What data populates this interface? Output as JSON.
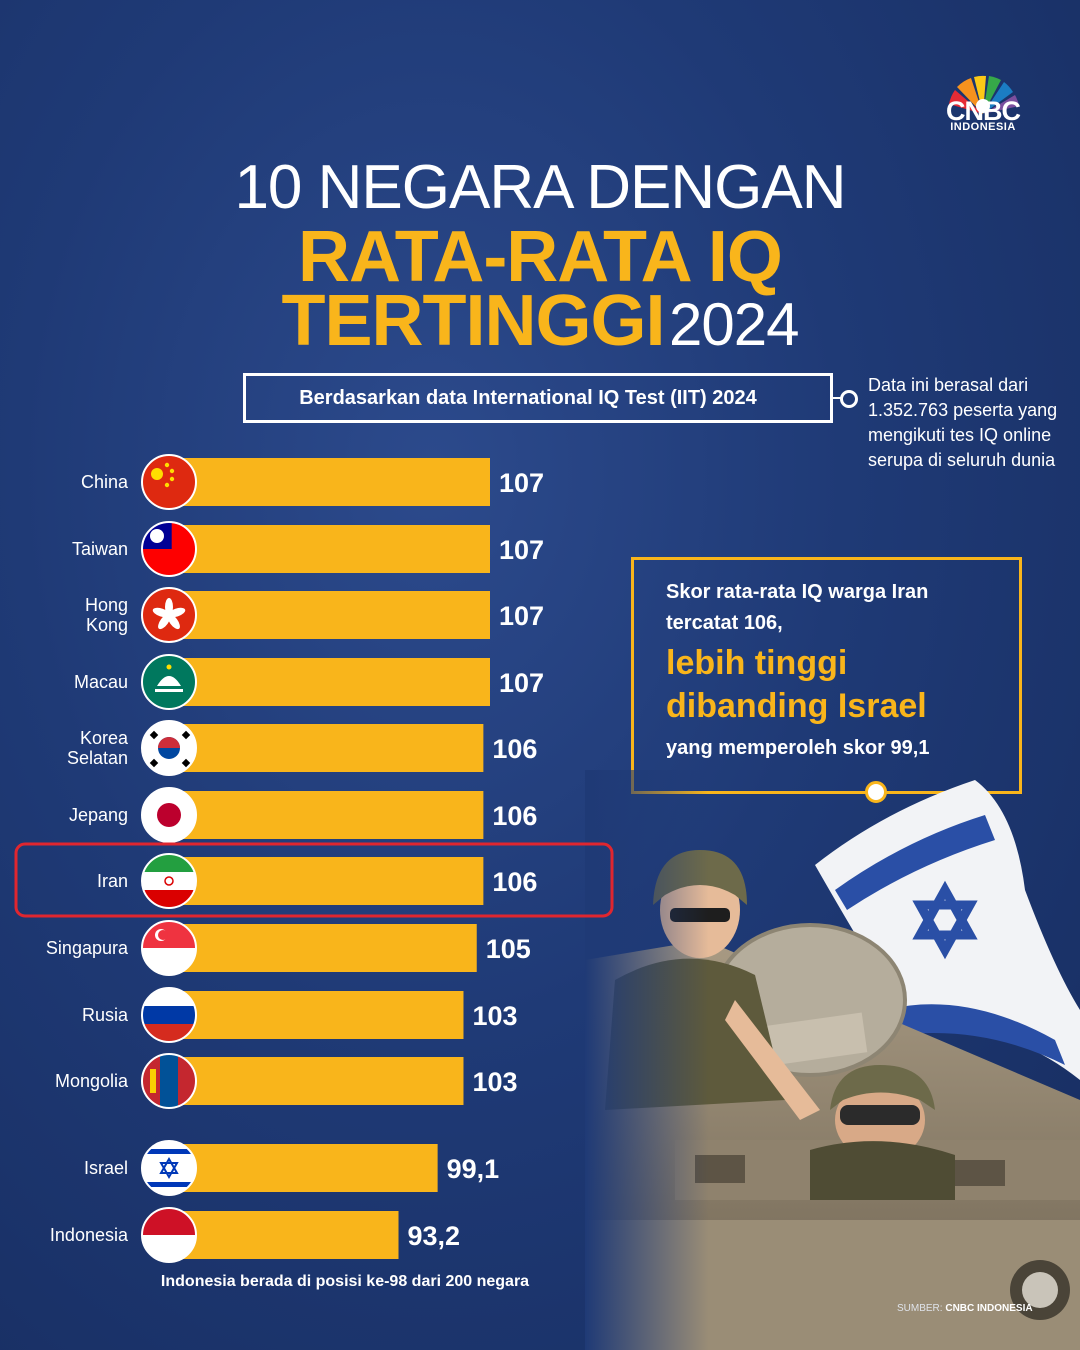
{
  "logo": {
    "name": "CNBC",
    "sub": "INDONESIA"
  },
  "title": {
    "line1": "10 NEGARA DENGAN",
    "line2": "RATA-RATA IQ",
    "line3_highlight": "TERTINGGI",
    "line3_year": "2024"
  },
  "source_box": "Berdasarkan data International IQ Test (IIT) 2024",
  "note": "Data ini berasal dari 1.352.763 peserta yang mengikuti tes IQ online serupa di seluruh dunia",
  "highlight": {
    "line1": "Skor rata-rata IQ warga Iran tercatat 106,",
    "line2": "lebih tinggi dibanding Israel",
    "line3": "yang memperoleh skor 99,1"
  },
  "footnote": "Indonesia berada di posisi ke-98 dari 200 negara",
  "credit_label": "SUMBER:",
  "credit_value": "CNBC INDONESIA",
  "colors": {
    "bar": "#f9b51b",
    "background": "#1f3a76",
    "highlight_border": "#e0262f"
  },
  "chart_data": {
    "type": "bar",
    "orientation": "horizontal",
    "title": "",
    "categories": [
      [
        "China"
      ],
      [
        "Taiwan"
      ],
      [
        "Hong",
        "Kong"
      ],
      [
        "Macau"
      ],
      [
        "Korea",
        "Selatan"
      ],
      [
        "Jepang"
      ],
      [
        "Iran"
      ],
      [
        "Singapura"
      ],
      [
        "Rusia"
      ],
      [
        "Mongolia"
      ],
      [
        "Israel"
      ],
      [
        "Indonesia"
      ]
    ],
    "values": [
      107,
      107,
      107,
      107,
      106,
      106,
      106,
      105,
      103,
      103,
      99.1,
      93.2
    ],
    "value_labels": [
      "107",
      "107",
      "107",
      "107",
      "106",
      "106",
      "106",
      "105",
      "103",
      "103",
      "99,1",
      "93,2"
    ],
    "flags": [
      "china-flag",
      "taiwan-flag",
      "hong-kong-flag",
      "macau-flag",
      "south-korea-flag",
      "japan-flag",
      "iran-flag",
      "singapore-flag",
      "russia-flag",
      "mongolia-flag",
      "israel-flag",
      "indonesia-flag"
    ],
    "highlighted": "Iran"
  }
}
